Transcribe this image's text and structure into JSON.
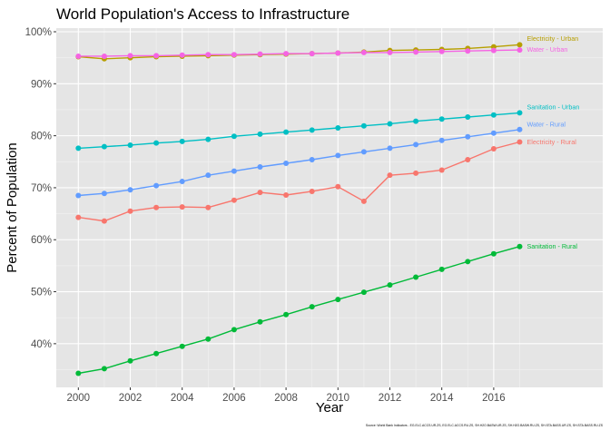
{
  "chart_data": {
    "type": "line",
    "title": "World Population's Access to Infrastructure",
    "xlabel": "Year",
    "ylabel": "Percent of Population",
    "caption": "Source: World Bank Indicators - EG.ELC.ACCS.UR.ZS, EG.ELC.ACCS.RU.ZS, SH.H2O.BASW.UR.ZS, SH.H2O.BASW.RU.ZS, SH.STA.BASS.UR.ZS, SH.STA.BASS.RU.ZS",
    "xlim": [
      1999.15,
      2020.2
    ],
    "ylim": [
      31.6,
      100.7
    ],
    "grid": true,
    "panel_background": "#E5E5E5",
    "x_ticks": [
      2000,
      2002,
      2004,
      2006,
      2008,
      2010,
      2012,
      2014,
      2016
    ],
    "x_tick_labels": [
      "2000",
      "2002",
      "2004",
      "2006",
      "2008",
      "2010",
      "2012",
      "2014",
      "2016"
    ],
    "y_ticks": [
      40,
      50,
      60,
      70,
      80,
      90,
      100
    ],
    "y_tick_labels": [
      "40%",
      "50%",
      "60%",
      "70%",
      "80%",
      "90%",
      "100%"
    ],
    "x": [
      2000,
      2001,
      2002,
      2003,
      2004,
      2005,
      2006,
      2007,
      2008,
      2009,
      2010,
      2011,
      2012,
      2013,
      2014,
      2015,
      2016,
      2017
    ],
    "series": [
      {
        "name": "Electricity - Urban",
        "color": "#B79F00",
        "values": [
          95.2,
          94.8,
          95.0,
          95.2,
          95.3,
          95.4,
          95.5,
          95.6,
          95.7,
          95.8,
          95.9,
          96.1,
          96.4,
          96.5,
          96.6,
          96.8,
          97.1,
          97.5
        ]
      },
      {
        "name": "Water - Urban",
        "color": "#F564E3",
        "values": [
          95.3,
          95.3,
          95.4,
          95.4,
          95.5,
          95.6,
          95.6,
          95.7,
          95.8,
          95.8,
          95.9,
          96.0,
          96.0,
          96.1,
          96.2,
          96.3,
          96.4,
          96.5
        ]
      },
      {
        "name": "Sanitation - Urban",
        "color": "#00BFC4",
        "values": [
          77.6,
          77.9,
          78.2,
          78.6,
          78.9,
          79.3,
          79.9,
          80.3,
          80.7,
          81.1,
          81.5,
          81.9,
          82.3,
          82.8,
          83.2,
          83.6,
          84.0,
          84.4
        ]
      },
      {
        "name": "Water - Rural",
        "color": "#619CFF",
        "values": [
          68.5,
          68.9,
          69.6,
          70.4,
          71.2,
          72.4,
          73.2,
          74.0,
          74.7,
          75.4,
          76.2,
          76.9,
          77.6,
          78.3,
          79.1,
          79.8,
          80.5,
          81.2
        ]
      },
      {
        "name": "Electricity - Rural",
        "color": "#F8766D",
        "values": [
          64.3,
          63.6,
          65.5,
          66.2,
          66.3,
          66.2,
          67.6,
          69.1,
          68.6,
          69.3,
          70.2,
          67.4,
          72.4,
          72.8,
          73.4,
          75.4,
          77.5,
          78.8
        ]
      },
      {
        "name": "Sanitation - Rural",
        "color": "#00BA38",
        "values": [
          34.3,
          35.2,
          36.7,
          38.1,
          39.5,
          40.9,
          42.7,
          44.2,
          45.6,
          47.1,
          48.5,
          49.9,
          51.3,
          52.8,
          54.3,
          55.8,
          57.3,
          58.7
        ]
      }
    ]
  }
}
